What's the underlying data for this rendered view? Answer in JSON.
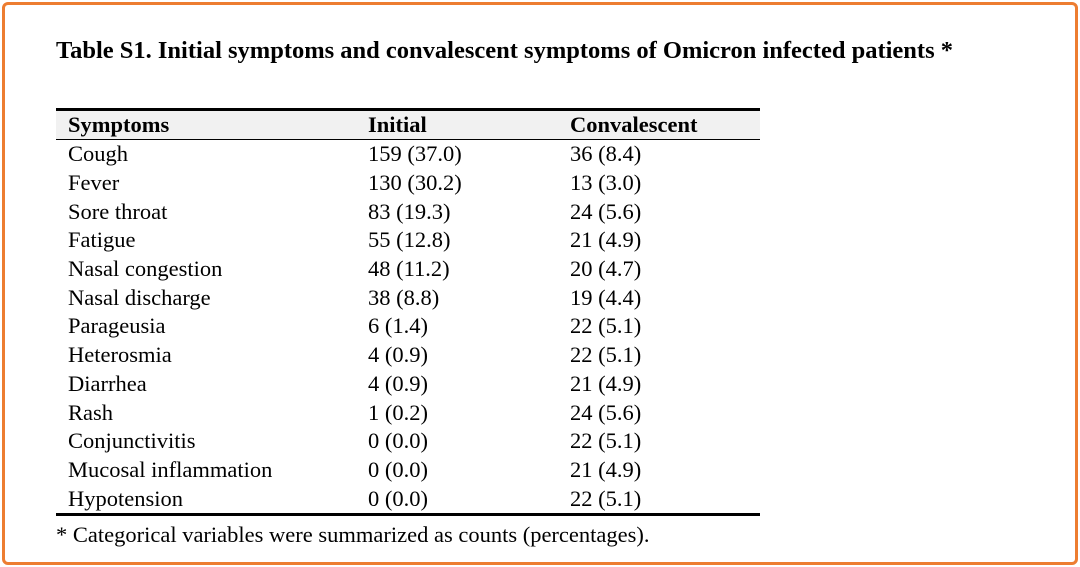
{
  "frame": {
    "border_color": "#ED7D31"
  },
  "title": "Table S1. Initial symptoms and convalescent symptoms of Omicron infected patients *",
  "table": {
    "headers": [
      "Symptoms",
      "Initial",
      "Convalescent"
    ],
    "rows": [
      [
        "Cough",
        "159 (37.0)",
        "36 (8.4)"
      ],
      [
        "Fever",
        "130 (30.2)",
        "13 (3.0)"
      ],
      [
        "Sore throat",
        "83 (19.3)",
        "24 (5.6)"
      ],
      [
        "Fatigue",
        "55 (12.8)",
        "21 (4.9)"
      ],
      [
        "Nasal congestion",
        "48 (11.2)",
        "20 (4.7)"
      ],
      [
        "Nasal discharge",
        "38 (8.8)",
        "19 (4.4)"
      ],
      [
        "Parageusia",
        "6 (1.4)",
        "22 (5.1)"
      ],
      [
        "Heterosmia",
        "4 (0.9)",
        "22 (5.1)"
      ],
      [
        "Diarrhea",
        "4 (0.9)",
        "21 (4.9)"
      ],
      [
        "Rash",
        "1 (0.2)",
        "24 (5.6)"
      ],
      [
        "Conjunctivitis",
        "0 (0.0)",
        "22 (5.1)"
      ],
      [
        "Mucosal inflammation",
        "0 (0.0)",
        "21 (4.9)"
      ],
      [
        "Hypotension",
        "0 (0.0)",
        "22 (5.1)"
      ]
    ]
  },
  "footnote": "* Categorical variables were summarized as counts (percentages)."
}
